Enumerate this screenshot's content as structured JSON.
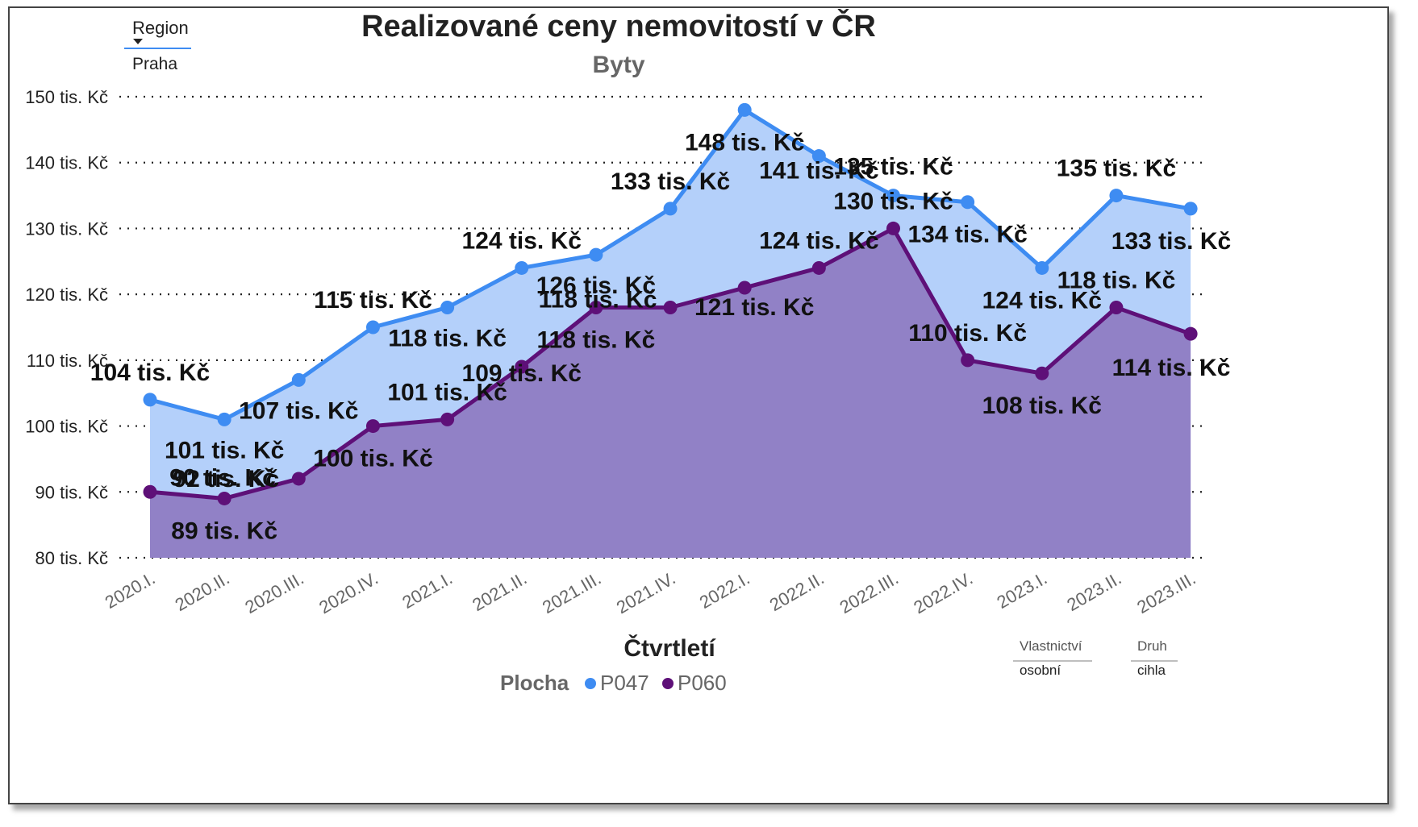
{
  "title": "Realizované ceny nemovitostí v ČR",
  "subtitle": "Byty",
  "filters": {
    "region": {
      "label": "Region",
      "value": "Praha"
    },
    "vlastnictvi": {
      "label": "Vlastnictví",
      "value": "osobní"
    },
    "druh": {
      "label": "Druh",
      "value": "cihla"
    }
  },
  "colors": {
    "P047": "#3E8CF2",
    "P060": "#5E1078",
    "P047_fill": "#B4D0FA",
    "P060_fill": "#9181C6"
  },
  "chart_data": {
    "type": "area",
    "title": "Realizované ceny nemovitostí v ČR",
    "subtitle": "Byty",
    "xlabel": "Čtvrtletí",
    "ylabel": "",
    "legend_title": "Plocha",
    "legend_position": "bottom",
    "grid": true,
    "ylim": [
      80,
      150
    ],
    "yticks": [
      "80 tis. Kč",
      "90 tis. Kč",
      "100 tis. Kč",
      "110 tis. Kč",
      "120 tis. Kč",
      "130 tis. Kč",
      "140 tis. Kč",
      "150 tis. Kč"
    ],
    "categories": [
      "2020.I.",
      "2020.II.",
      "2020.III.",
      "2020.IV.",
      "2021.I.",
      "2021.II.",
      "2021.III.",
      "2021.IV.",
      "2022.I.",
      "2022.II.",
      "2022.III.",
      "2022.IV.",
      "2023.I.",
      "2023.II.",
      "2023.III."
    ],
    "series": [
      {
        "name": "P047",
        "values": [
          104,
          101,
          107,
          115,
          118,
          124,
          126,
          133,
          148,
          141,
          135,
          134,
          124,
          135,
          133
        ],
        "labels": [
          "104 tis. Kč",
          "101 tis. Kč",
          "107 tis. Kč",
          "115 tis. Kč",
          "118 tis. Kč",
          "124 tis. Kč",
          "126 tis. Kč",
          "133 tis. Kč",
          "148 tis. Kč",
          "141 tis. Kč",
          "135 tis. Kč",
          "134 tis. Kč",
          "124 tis. Kč",
          "135 tis. Kč",
          "133 tis. Kč"
        ]
      },
      {
        "name": "P060",
        "values": [
          90,
          89,
          92,
          100,
          101,
          109,
          118,
          118,
          121,
          124,
          130,
          110,
          108,
          118,
          114
        ],
        "labels": [
          "90 tis. Kč",
          "89 tis. Kč",
          "92 tis. Kč",
          "100 tis. Kč",
          "101 tis. Kč",
          "109 tis. Kč",
          "118 tis. Kč",
          "118 tis. Kč",
          "121 tis. Kč",
          "124 tis. Kč",
          "130 tis. Kč",
          "110 tis. Kč",
          "108 tis. Kč",
          "118 tis. Kč",
          "114 tis. Kč"
        ]
      }
    ]
  }
}
